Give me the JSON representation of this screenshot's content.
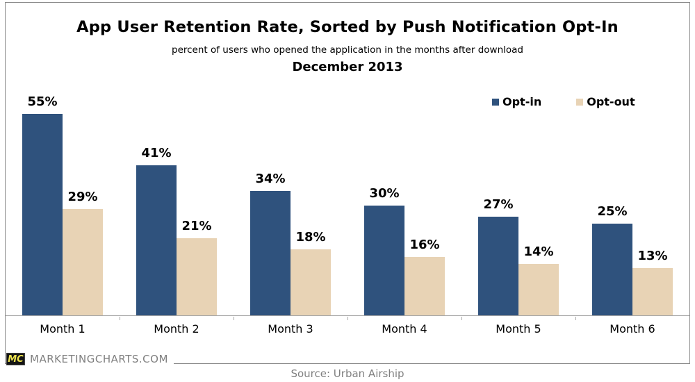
{
  "header": {
    "title": "App User Retention Rate, Sorted by Push Notification Opt-In",
    "subtitle": "percent of users who opened the application in the months after download",
    "period": "December 2013"
  },
  "chart_data": {
    "type": "bar",
    "title": "App User Retention Rate, Sorted by Push Notification Opt-In",
    "subtitle": "percent of users who opened the application in the months after download",
    "period": "December 2013",
    "categories": [
      "Month 1",
      "Month 2",
      "Month 3",
      "Month 4",
      "Month 5",
      "Month 6"
    ],
    "series": [
      {
        "name": "Opt-in",
        "color": "#2f527d",
        "values": [
          55,
          41,
          34,
          30,
          27,
          25
        ]
      },
      {
        "name": "Opt-out",
        "color": "#e8d3b5",
        "values": [
          29,
          21,
          18,
          16,
          14,
          13
        ]
      }
    ],
    "value_suffix": "%",
    "ylim": [
      0,
      60
    ],
    "grid": false,
    "legend_position": "top-right",
    "axis_color": "#a6a6a6"
  },
  "footer": {
    "logo_text": "MC",
    "site": "MARKETINGCHARTS.COM",
    "source": "Source: Urban Airship"
  }
}
